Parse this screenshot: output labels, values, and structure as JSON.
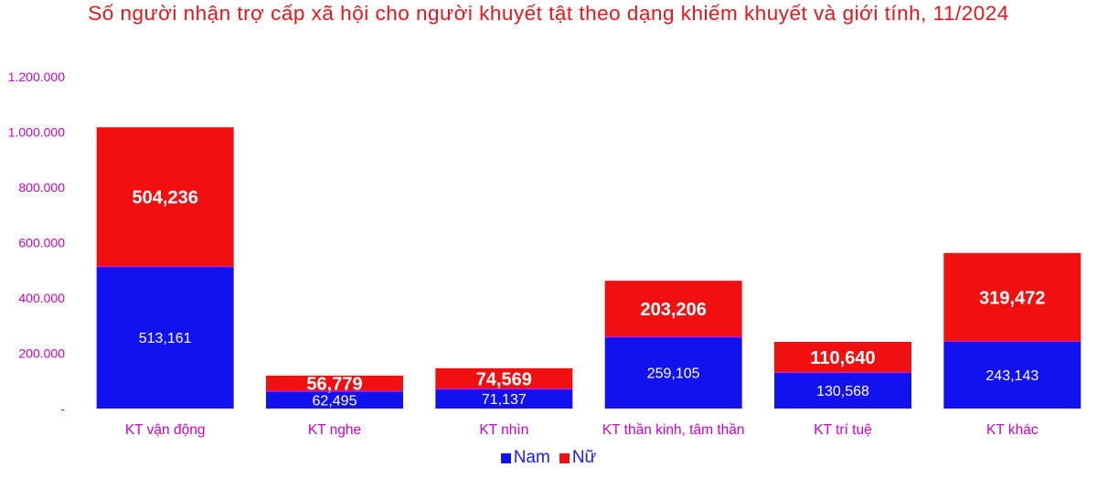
{
  "chart_data": {
    "type": "bar",
    "stacked": true,
    "title": "Số người nhận trợ cấp xã hội cho người khuyết tật theo dạng khiếm khuyết và giới tính, 11/2024",
    "categories": [
      "KT vận động",
      "KT nghe",
      "KT nhìn",
      "KT thần kinh, tâm thần",
      "KT trí tuệ",
      "KT khác"
    ],
    "series": [
      {
        "name": "Nam",
        "color": "#1212f0",
        "values": [
          513161,
          62495,
          71137,
          259105,
          130568,
          243143
        ],
        "labels": [
          "513,161",
          "62,495",
          "71,137",
          "259,105",
          "130,568",
          "243,143"
        ]
      },
      {
        "name": "Nữ",
        "color": "#f01010",
        "values": [
          504236,
          56779,
          74569,
          203206,
          110640,
          319472
        ],
        "labels": [
          "504,236",
          "56,779",
          "74,569",
          "203,206",
          "110,640",
          "319,472"
        ]
      }
    ],
    "ylim": [
      0,
      1200000
    ],
    "yticks": [
      0,
      200000,
      400000,
      600000,
      800000,
      1000000,
      1200000
    ],
    "ytick_labels": [
      "-",
      "200.000",
      "400.000",
      "600.000",
      "800.000",
      "1.000.000",
      "1.200.000"
    ],
    "grid": false,
    "legend_position": "bottom",
    "colors": {
      "title": "#e8141b",
      "axis_text": "#cc00cc",
      "category_text": "#cc00cc",
      "legend_text": "#1a1aff"
    }
  }
}
